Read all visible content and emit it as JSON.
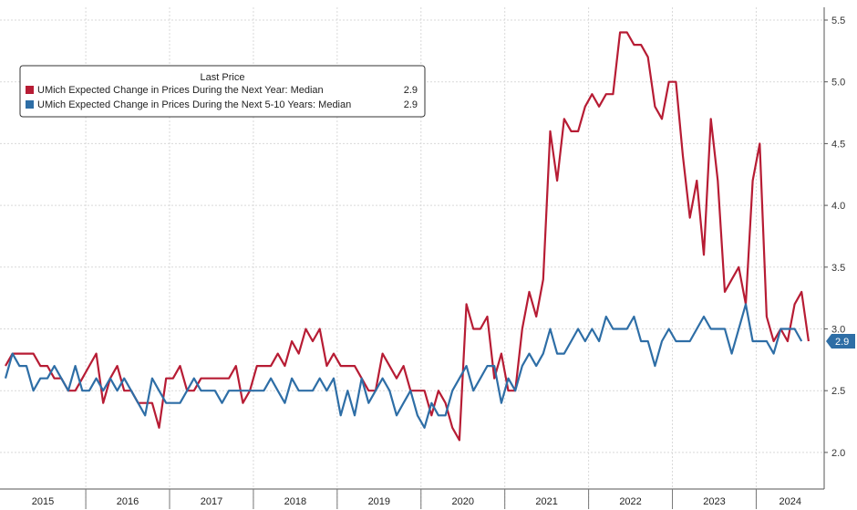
{
  "chart_data": {
    "type": "line",
    "title": "",
    "xlabel": "",
    "ylabel": "",
    "ylim": [
      1.8,
      5.6
    ],
    "yticks": [
      "2.0",
      "2.5",
      "3.0",
      "3.5",
      "4.0",
      "4.5",
      "5.0",
      "5.5"
    ],
    "x_year_labels": [
      "2015",
      "2016",
      "2017",
      "2018",
      "2019",
      "2020",
      "2021",
      "2022",
      "2023",
      "2024"
    ],
    "x_start": "2015-01",
    "x_end": "2024-06",
    "grid": true,
    "legend": {
      "position": "top-left",
      "title": "Last Price",
      "entries": [
        {
          "label": "UMich Expected Change in Prices During the Next Year: Median",
          "value": "2.9",
          "color": "#b71c34"
        },
        {
          "label": "UMich Expected Change in Prices During the Next 5-10 Years: Median",
          "value": "2.9",
          "color": "#2e6ea6"
        }
      ]
    },
    "last_value_label": "2.9",
    "series": [
      {
        "name": "UMich Expected Change in Prices During the Next Year: Median",
        "color": "#b71c34",
        "values": [
          2.7,
          2.8,
          2.8,
          2.8,
          2.8,
          2.7,
          2.7,
          2.6,
          2.6,
          2.5,
          2.5,
          2.6,
          2.7,
          2.8,
          2.4,
          2.6,
          2.7,
          2.5,
          2.5,
          2.4,
          2.4,
          2.4,
          2.2,
          2.6,
          2.6,
          2.7,
          2.5,
          2.5,
          2.6,
          2.6,
          2.6,
          2.6,
          2.6,
          2.7,
          2.4,
          2.5,
          2.7,
          2.7,
          2.7,
          2.8,
          2.7,
          2.9,
          2.8,
          3.0,
          2.9,
          3.0,
          2.7,
          2.8,
          2.7,
          2.7,
          2.7,
          2.6,
          2.5,
          2.5,
          2.8,
          2.7,
          2.6,
          2.7,
          2.5,
          2.5,
          2.5,
          2.3,
          2.5,
          2.4,
          2.2,
          2.1,
          3.2,
          3.0,
          3.0,
          3.1,
          2.6,
          2.8,
          2.5,
          2.5,
          3.0,
          3.3,
          3.1,
          3.4,
          4.6,
          4.2,
          4.7,
          4.6,
          4.6,
          4.8,
          4.9,
          4.8,
          4.9,
          4.9,
          5.4,
          5.4,
          5.3,
          5.3,
          5.2,
          4.8,
          4.7,
          5.0,
          5.0,
          4.4,
          3.9,
          4.2,
          3.6,
          4.7,
          4.2,
          3.3,
          3.4,
          3.5,
          3.2,
          4.2,
          4.5,
          3.1,
          2.9,
          3.0,
          2.9,
          3.2,
          3.3,
          2.9
        ]
      },
      {
        "name": "UMich Expected Change in Prices During the Next 5-10 Years: Median",
        "color": "#2e6ea6",
        "values": [
          2.6,
          2.8,
          2.7,
          2.7,
          2.5,
          2.6,
          2.6,
          2.7,
          2.6,
          2.5,
          2.7,
          2.5,
          2.5,
          2.6,
          2.5,
          2.6,
          2.5,
          2.6,
          2.5,
          2.4,
          2.3,
          2.6,
          2.5,
          2.4,
          2.4,
          2.4,
          2.5,
          2.6,
          2.5,
          2.5,
          2.5,
          2.4,
          2.5,
          2.5,
          2.5,
          2.5,
          2.5,
          2.5,
          2.6,
          2.5,
          2.4,
          2.6,
          2.5,
          2.5,
          2.5,
          2.6,
          2.5,
          2.6,
          2.3,
          2.5,
          2.3,
          2.6,
          2.4,
          2.5,
          2.6,
          2.5,
          2.3,
          2.4,
          2.5,
          2.3,
          2.2,
          2.4,
          2.3,
          2.3,
          2.5,
          2.6,
          2.7,
          2.5,
          2.6,
          2.7,
          2.7,
          2.4,
          2.6,
          2.5,
          2.7,
          2.8,
          2.7,
          2.8,
          3.0,
          2.8,
          2.8,
          2.9,
          3.0,
          2.9,
          3.0,
          2.9,
          3.1,
          3.0,
          3.0,
          3.0,
          3.1,
          2.9,
          2.9,
          2.7,
          2.9,
          3.0,
          2.9,
          2.9,
          2.9,
          3.0,
          3.1,
          3.0,
          3.0,
          3.0,
          2.8,
          3.0,
          3.2,
          2.9,
          2.9,
          2.9,
          2.8,
          3.0,
          3.0,
          3.0,
          2.9
        ]
      }
    ]
  }
}
